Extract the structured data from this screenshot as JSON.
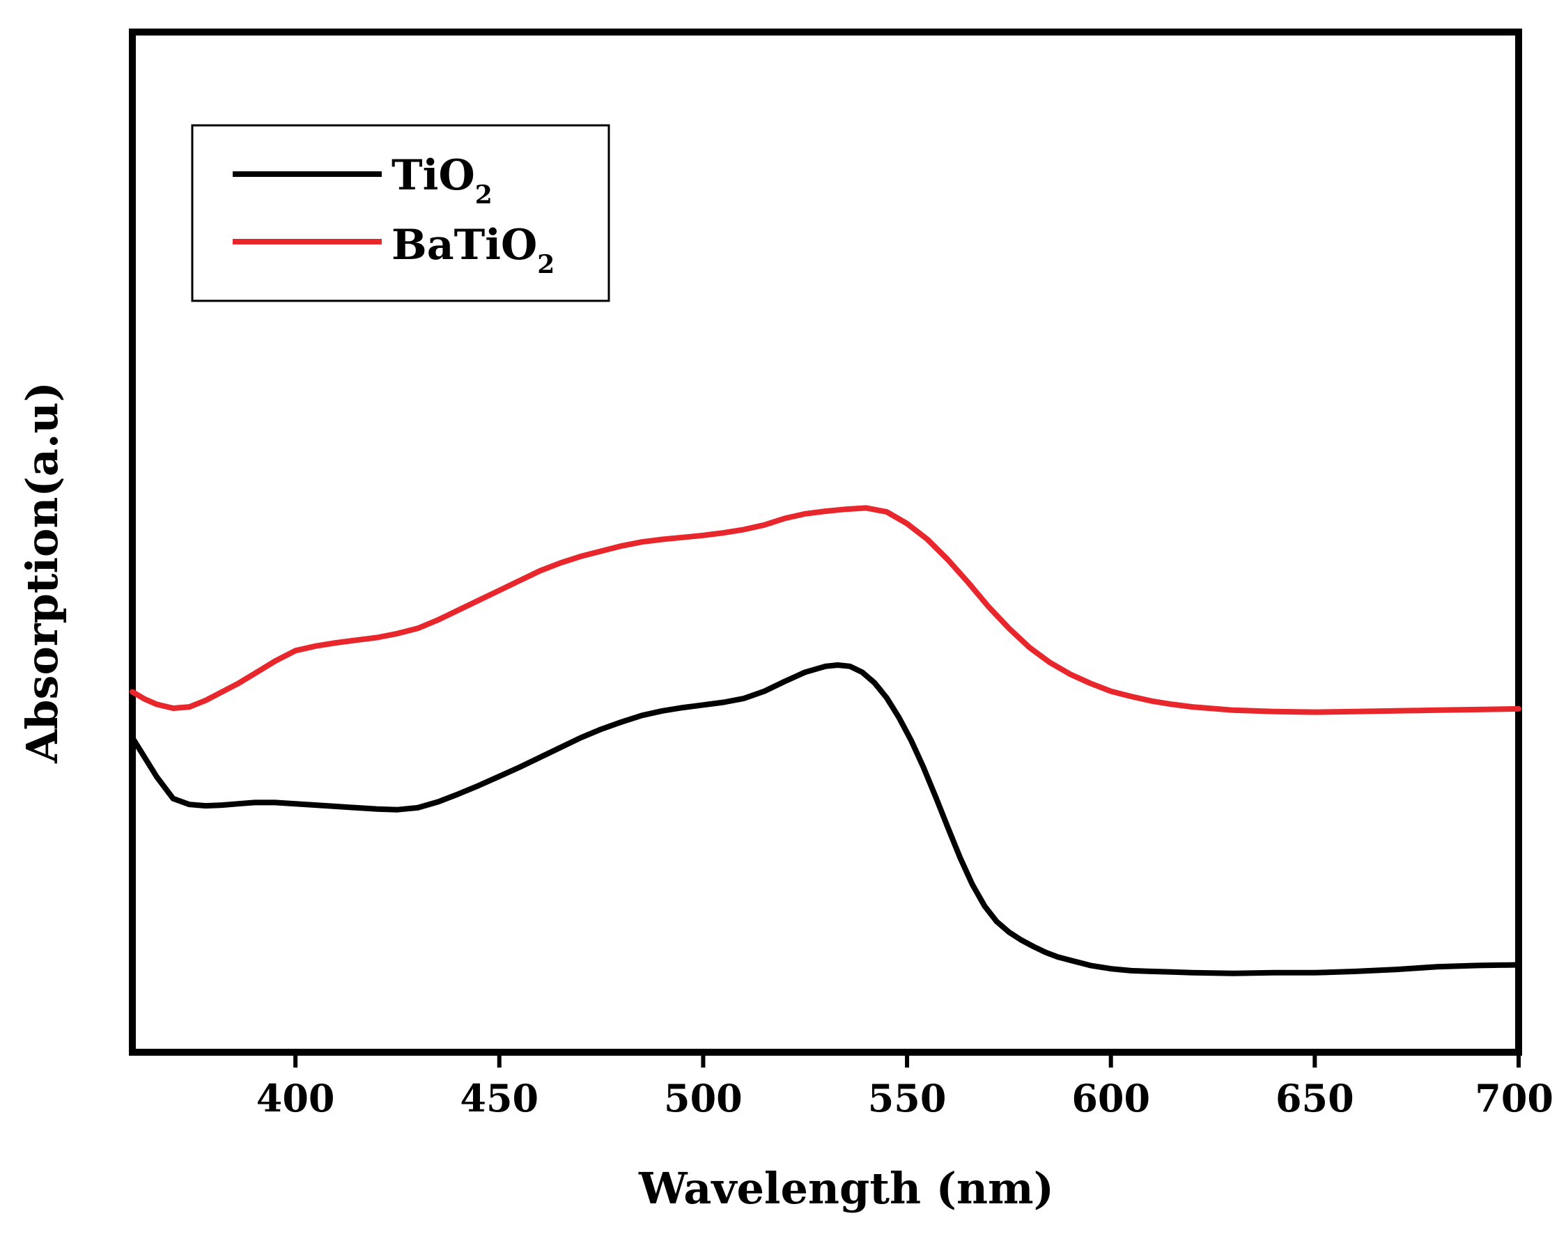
{
  "chart_data": {
    "type": "line",
    "title": "",
    "xlabel": "Wavelength (nm)",
    "ylabel": "Absorption(a.u)",
    "xlim": [
      360,
      700
    ],
    "ylim": [
      0,
      100
    ],
    "xticks": [
      400,
      450,
      500,
      550,
      600,
      650,
      700
    ],
    "x_tick_labels": [
      "400",
      "450",
      "500",
      "550",
      "600",
      "650",
      "700"
    ],
    "yticks_shown": false,
    "grid": false,
    "legend_position": "top-left",
    "series": [
      {
        "name": "TiO",
        "subscript": "2",
        "color": "#000000",
        "x": [
          360,
          363,
          366,
          370,
          374,
          378,
          382,
          386,
          390,
          395,
          400,
          405,
          410,
          415,
          420,
          425,
          430,
          435,
          440,
          445,
          450,
          455,
          460,
          465,
          470,
          475,
          480,
          485,
          490,
          495,
          500,
          505,
          510,
          515,
          520,
          525,
          530,
          533,
          536,
          539,
          542,
          545,
          548,
          551,
          554,
          557,
          560,
          563,
          566,
          569,
          572,
          575,
          578,
          581,
          584,
          587,
          590,
          595,
          600,
          605,
          610,
          615,
          620,
          630,
          640,
          650,
          660,
          670,
          680,
          690,
          700
        ],
        "values": [
          40.5,
          37.5,
          34.5,
          31.2,
          30.3,
          30.1,
          30.2,
          30.4,
          30.6,
          30.6,
          30.4,
          30.2,
          30.0,
          29.8,
          29.6,
          29.5,
          29.8,
          30.7,
          31.9,
          33.2,
          34.6,
          36.0,
          37.5,
          39.0,
          40.5,
          41.8,
          42.9,
          43.9,
          44.6,
          45.1,
          45.5,
          45.9,
          46.5,
          47.6,
          49.1,
          50.5,
          51.4,
          51.6,
          51.4,
          50.5,
          48.9,
          46.6,
          43.6,
          40.1,
          36.0,
          31.5,
          26.8,
          22.2,
          18.1,
          14.8,
          12.4,
          10.8,
          9.6,
          8.6,
          7.7,
          7.0,
          6.5,
          5.7,
          5.2,
          4.9,
          4.8,
          4.7,
          4.6,
          4.5,
          4.6,
          4.6,
          4.8,
          5.1,
          5.5,
          5.7,
          5.8
        ]
      },
      {
        "name": "BaTiO",
        "subscript": "2",
        "color": "#e8272d",
        "x": [
          360,
          363,
          366,
          370,
          374,
          378,
          382,
          386,
          390,
          395,
          400,
          405,
          410,
          415,
          420,
          425,
          430,
          435,
          440,
          445,
          450,
          455,
          460,
          465,
          470,
          475,
          480,
          485,
          490,
          495,
          500,
          505,
          510,
          515,
          520,
          525,
          530,
          535,
          540,
          545,
          550,
          555,
          560,
          565,
          570,
          575,
          580,
          585,
          590,
          595,
          600,
          605,
          610,
          615,
          620,
          630,
          640,
          650,
          660,
          670,
          680,
          690,
          700
        ],
        "values": [
          47.5,
          46.4,
          45.6,
          45.0,
          45.2,
          46.2,
          47.5,
          48.8,
          50.3,
          52.2,
          53.8,
          54.5,
          55.0,
          55.4,
          55.8,
          56.4,
          57.2,
          58.5,
          60.0,
          61.5,
          63.0,
          64.5,
          66.0,
          67.2,
          68.2,
          69.0,
          69.8,
          70.4,
          70.8,
          71.1,
          71.4,
          71.8,
          72.3,
          73.0,
          74.0,
          74.7,
          75.1,
          75.4,
          75.6,
          75.0,
          73.2,
          70.8,
          67.7,
          64.2,
          60.5,
          57.2,
          54.3,
          52.0,
          50.2,
          48.8,
          47.6,
          46.8,
          46.1,
          45.6,
          45.2,
          44.7,
          44.5,
          44.4,
          44.5,
          44.6,
          44.7,
          44.8,
          44.9
        ]
      }
    ]
  }
}
